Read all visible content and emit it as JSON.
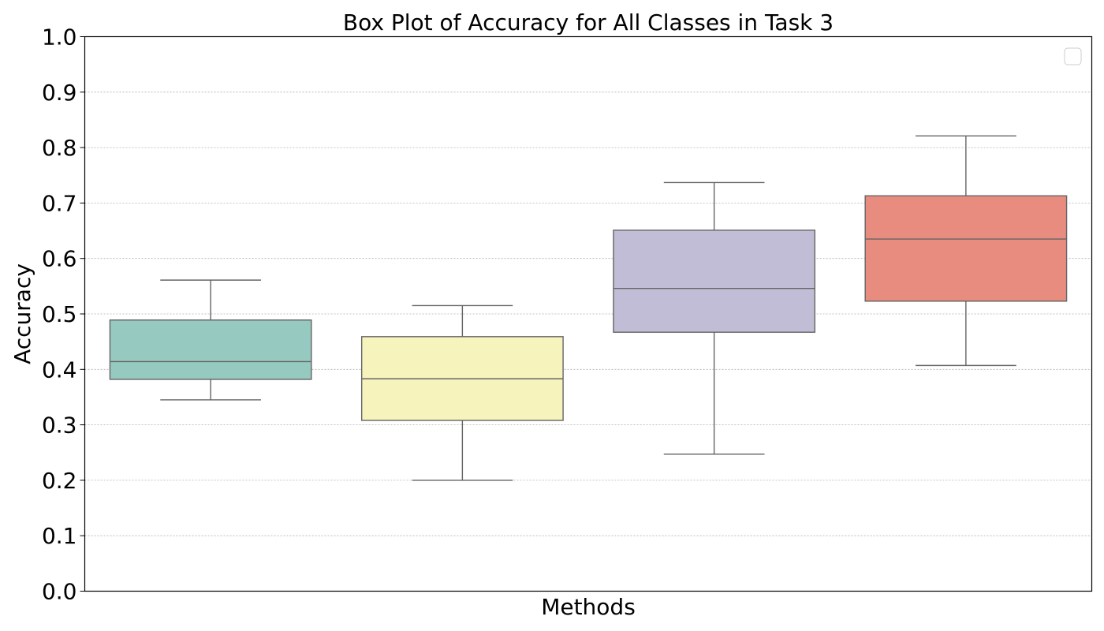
{
  "chart_data": {
    "type": "box",
    "title": "Box Plot of Accuracy for All Classes in Task 3",
    "xlabel": "Methods",
    "ylabel": "Accuracy",
    "ylim": [
      0.0,
      1.0
    ],
    "yticks": [
      "0.0",
      "0.1",
      "0.2",
      "0.3",
      "0.4",
      "0.5",
      "0.6",
      "0.7",
      "0.8",
      "0.9",
      "1.0"
    ],
    "grid": "horizontal dotted",
    "legend": {
      "placement": "top-right",
      "entries": []
    },
    "boxes": [
      {
        "color": "#96c9c0",
        "whisker_low": 0.345,
        "q1": 0.382,
        "median": 0.414,
        "q3": 0.489,
        "whisker_high": 0.561
      },
      {
        "color": "#f6f4bc",
        "whisker_low": 0.2,
        "q1": 0.308,
        "median": 0.383,
        "q3": 0.459,
        "whisker_high": 0.515
      },
      {
        "color": "#c1bdd6",
        "whisker_low": 0.247,
        "q1": 0.467,
        "median": 0.546,
        "q3": 0.651,
        "whisker_high": 0.737
      },
      {
        "color": "#e98c80",
        "whisker_low": 0.407,
        "q1": 0.523,
        "median": 0.635,
        "q3": 0.713,
        "whisker_high": 0.821
      }
    ]
  }
}
